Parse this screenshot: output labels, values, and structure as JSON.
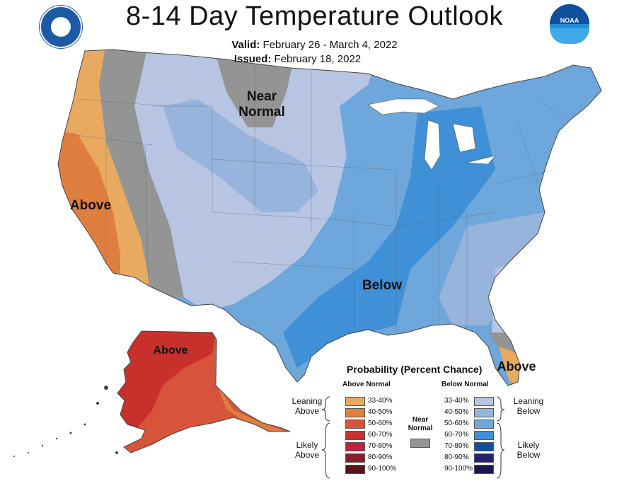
{
  "header": {
    "title": "8-14 Day Temperature Outlook",
    "valid_label": "Valid:",
    "valid_value": "February 26 - March 4, 2022",
    "issued_label": "Issued:",
    "issued_value": "February 18, 2022"
  },
  "logos": {
    "left": "department-of-commerce-seal",
    "right_text": "NOAA"
  },
  "map_labels": {
    "near_normal_1": "Near",
    "near_normal_2": "Normal",
    "above_west": "Above",
    "below_east": "Below",
    "above_alaska": "Above",
    "above_florida": "Above"
  },
  "legend": {
    "title": "Probability (Percent Chance)",
    "above_header": "Above Normal",
    "below_header": "Below Normal",
    "near_normal_1": "Near",
    "near_normal_2": "Normal",
    "leaning_above_1": "Leaning",
    "leaning_above_2": "Above",
    "likely_above_1": "Likely",
    "likely_above_2": "Above",
    "leaning_below_1": "Leaning",
    "leaning_below_2": "Below",
    "likely_below_1": "Likely",
    "likely_below_2": "Below",
    "above_items": [
      {
        "label": "33-40%",
        "color": "#e8a960"
      },
      {
        "label": "40-50%",
        "color": "#df7f3f"
      },
      {
        "label": "50-60%",
        "color": "#d7543a"
      },
      {
        "label": "60-70%",
        "color": "#c9302c"
      },
      {
        "label": "70-80%",
        "color": "#c0233f"
      },
      {
        "label": "80-90%",
        "color": "#8a1d2a"
      },
      {
        "label": "90-100%",
        "color": "#5a1418"
      }
    ],
    "below_items": [
      {
        "label": "33-40%",
        "color": "#b7c4e2"
      },
      {
        "label": "40-50%",
        "color": "#96b4dc"
      },
      {
        "label": "50-60%",
        "color": "#6ea7dc"
      },
      {
        "label": "60-70%",
        "color": "#3f90d6"
      },
      {
        "label": "70-80%",
        "color": "#0d4f9c"
      },
      {
        "label": "80-90%",
        "color": "#262073"
      },
      {
        "label": "90-100%",
        "color": "#1a1650"
      }
    ],
    "near_color": "#949494"
  }
}
